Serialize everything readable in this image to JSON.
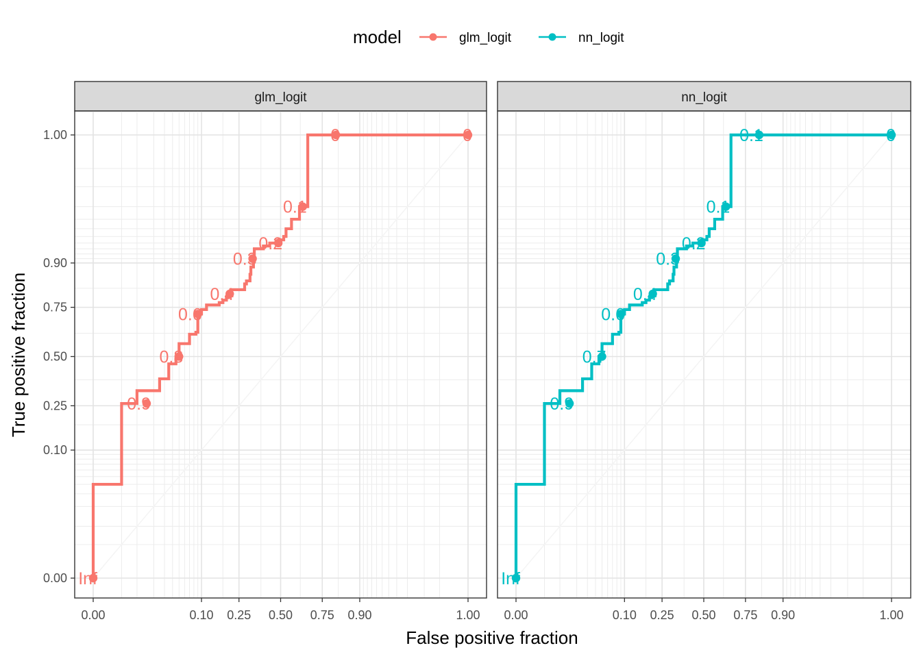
{
  "chart_data": {
    "type": "line",
    "chart_kind": "roc-curve-faceted",
    "xlabel": "False positive fraction",
    "ylabel": "True positive fraction",
    "x_breaks": [
      0,
      0.1,
      0.25,
      0.5,
      0.75,
      0.9,
      1
    ],
    "x_tick_labels": [
      "0.00",
      "0.10",
      "0.25",
      "0.50",
      "0.75",
      "0.90",
      "1.00"
    ],
    "y_breaks": [
      0,
      0.1,
      0.25,
      0.5,
      0.75,
      0.9,
      1
    ],
    "y_tick_labels": [
      "0.00",
      "0.10",
      "0.25",
      "0.50",
      "0.75",
      "0.90",
      "1.00"
    ],
    "xlim": [
      -0.05,
      1.05
    ],
    "ylim": [
      -0.05,
      1.05
    ],
    "scale": "probit-style (dense gridlines near 0 and 1)",
    "grid": true,
    "legend": {
      "title": "model",
      "placement": "top",
      "entries": [
        {
          "label": "glm_logit",
          "color": "#F8766D"
        },
        {
          "label": "nn_logit",
          "color": "#00BFC4"
        }
      ]
    },
    "facets": [
      {
        "strip_label": "glm_logit",
        "color": "#F8766D",
        "series": {
          "name": "glm_logit",
          "points": [
            [
              0,
              0
            ],
            [
              0,
              0.04
            ],
            [
              0.005,
              0.04
            ],
            [
              0.005,
              0.26
            ],
            [
              0.01,
              0.26
            ],
            [
              0.01,
              0.32
            ],
            [
              0.025,
              0.32
            ],
            [
              0.025,
              0.38
            ],
            [
              0.035,
              0.38
            ],
            [
              0.035,
              0.46
            ],
            [
              0.045,
              0.46
            ],
            [
              0.045,
              0.5
            ],
            [
              0.05,
              0.5
            ],
            [
              0.05,
              0.57
            ],
            [
              0.07,
              0.57
            ],
            [
              0.07,
              0.62
            ],
            [
              0.085,
              0.62
            ],
            [
              0.085,
              0.63
            ],
            [
              0.09,
              0.63
            ],
            [
              0.09,
              0.72
            ],
            [
              0.1,
              0.72
            ],
            [
              0.1,
              0.74
            ],
            [
              0.115,
              0.74
            ],
            [
              0.115,
              0.76
            ],
            [
              0.16,
              0.76
            ],
            [
              0.16,
              0.77
            ],
            [
              0.175,
              0.77
            ],
            [
              0.175,
              0.78
            ],
            [
              0.19,
              0.78
            ],
            [
              0.19,
              0.79
            ],
            [
              0.2,
              0.79
            ],
            [
              0.2,
              0.81
            ],
            [
              0.21,
              0.81
            ],
            [
              0.21,
              0.82
            ],
            [
              0.28,
              0.82
            ],
            [
              0.28,
              0.84
            ],
            [
              0.29,
              0.84
            ],
            [
              0.29,
              0.85
            ],
            [
              0.31,
              0.85
            ],
            [
              0.31,
              0.87
            ],
            [
              0.315,
              0.87
            ],
            [
              0.315,
              0.89
            ],
            [
              0.33,
              0.89
            ],
            [
              0.33,
              0.91
            ],
            [
              0.335,
              0.91
            ],
            [
              0.335,
              0.93
            ],
            [
              0.39,
              0.93
            ],
            [
              0.39,
              0.935
            ],
            [
              0.43,
              0.935
            ],
            [
              0.43,
              0.94
            ],
            [
              0.49,
              0.94
            ],
            [
              0.49,
              0.945
            ],
            [
              0.52,
              0.945
            ],
            [
              0.52,
              0.95
            ],
            [
              0.535,
              0.95
            ],
            [
              0.535,
              0.96
            ],
            [
              0.57,
              0.96
            ],
            [
              0.57,
              0.97
            ],
            [
              0.62,
              0.97
            ],
            [
              0.62,
              0.98
            ],
            [
              0.67,
              0.98
            ],
            [
              0.67,
              1.0
            ],
            [
              1.0,
              1.0
            ]
          ],
          "cutoffs": [
            {
              "label": "Inf",
              "display": "Inf",
              "fpf": 0.0,
              "tpf": 0.0
            },
            {
              "label": "0.9",
              "display": "0.9",
              "fpf": 0.015,
              "tpf": 0.26
            },
            {
              "label": "0.8",
              "display": "0.8",
              "fpf": 0.05,
              "tpf": 0.5
            },
            {
              "label": "0.6",
              "display": "0.6",
              "fpf": 0.09,
              "tpf": 0.72
            },
            {
              "label": "0.4",
              "display": "0.4",
              "fpf": 0.205,
              "tpf": 0.805
            },
            {
              "label": "0.3",
              "display": "0.3",
              "fpf": 0.325,
              "tpf": 0.91
            },
            {
              "label": "0.2",
              "display": "0.2",
              "fpf": 0.485,
              "tpf": 0.94
            },
            {
              "label": "0.1",
              "display": "0.1",
              "fpf": 0.64,
              "tpf": 0.98
            },
            {
              "label": "0",
              "display": "0",
              "fpf": 0.815,
              "tpf": 1.0
            },
            {
              "label": "0",
              "display": "0",
              "fpf": 1.0,
              "tpf": 1.0
            }
          ]
        }
      },
      {
        "strip_label": "nn_logit",
        "color": "#00BFC4",
        "series": {
          "name": "nn_logit",
          "points": [
            [
              0,
              0
            ],
            [
              0,
              0.04
            ],
            [
              0.005,
              0.04
            ],
            [
              0.005,
              0.26
            ],
            [
              0.01,
              0.26
            ],
            [
              0.01,
              0.32
            ],
            [
              0.025,
              0.32
            ],
            [
              0.025,
              0.38
            ],
            [
              0.035,
              0.38
            ],
            [
              0.035,
              0.46
            ],
            [
              0.045,
              0.46
            ],
            [
              0.045,
              0.5
            ],
            [
              0.05,
              0.5
            ],
            [
              0.05,
              0.57
            ],
            [
              0.07,
              0.57
            ],
            [
              0.07,
              0.62
            ],
            [
              0.085,
              0.62
            ],
            [
              0.085,
              0.63
            ],
            [
              0.09,
              0.63
            ],
            [
              0.09,
              0.72
            ],
            [
              0.1,
              0.72
            ],
            [
              0.1,
              0.74
            ],
            [
              0.115,
              0.74
            ],
            [
              0.115,
              0.76
            ],
            [
              0.16,
              0.76
            ],
            [
              0.16,
              0.77
            ],
            [
              0.175,
              0.77
            ],
            [
              0.175,
              0.78
            ],
            [
              0.19,
              0.78
            ],
            [
              0.19,
              0.79
            ],
            [
              0.2,
              0.79
            ],
            [
              0.2,
              0.81
            ],
            [
              0.21,
              0.81
            ],
            [
              0.21,
              0.82
            ],
            [
              0.28,
              0.82
            ],
            [
              0.28,
              0.84
            ],
            [
              0.29,
              0.84
            ],
            [
              0.29,
              0.85
            ],
            [
              0.31,
              0.85
            ],
            [
              0.31,
              0.87
            ],
            [
              0.315,
              0.87
            ],
            [
              0.315,
              0.89
            ],
            [
              0.33,
              0.89
            ],
            [
              0.33,
              0.91
            ],
            [
              0.335,
              0.91
            ],
            [
              0.335,
              0.93
            ],
            [
              0.39,
              0.93
            ],
            [
              0.39,
              0.935
            ],
            [
              0.43,
              0.935
            ],
            [
              0.43,
              0.94
            ],
            [
              0.49,
              0.94
            ],
            [
              0.49,
              0.945
            ],
            [
              0.52,
              0.945
            ],
            [
              0.52,
              0.95
            ],
            [
              0.535,
              0.95
            ],
            [
              0.535,
              0.96
            ],
            [
              0.57,
              0.96
            ],
            [
              0.57,
              0.97
            ],
            [
              0.62,
              0.97
            ],
            [
              0.62,
              0.98
            ],
            [
              0.67,
              0.98
            ],
            [
              0.67,
              1.0
            ],
            [
              1.0,
              1.0
            ]
          ],
          "cutoffs": [
            {
              "label": "Inf",
              "display": "Inf",
              "fpf": 0.0,
              "tpf": 0.0
            },
            {
              "label": "0.9",
              "display": "0.9",
              "fpf": 0.015,
              "tpf": 0.26
            },
            {
              "label": "0.7",
              "display": "0.7",
              "fpf": 0.05,
              "tpf": 0.5
            },
            {
              "label": "0.6",
              "display": "0.6",
              "fpf": 0.09,
              "tpf": 0.72
            },
            {
              "label": "0.4",
              "display": "0.4",
              "fpf": 0.205,
              "tpf": 0.805
            },
            {
              "label": "0.3",
              "display": "0.3",
              "fpf": 0.325,
              "tpf": 0.91
            },
            {
              "label": "0.2",
              "display": "0.2",
              "fpf": 0.485,
              "tpf": 0.94
            },
            {
              "label": "0.1",
              "display": "0.1",
              "fpf": 0.64,
              "tpf": 0.98
            },
            {
              "label": "0.1",
              "display": "0.1",
              "fpf": 0.815,
              "tpf": 1.0
            },
            {
              "label": "0",
              "display": "0",
              "fpf": 1.0,
              "tpf": 1.0
            }
          ]
        }
      }
    ]
  }
}
